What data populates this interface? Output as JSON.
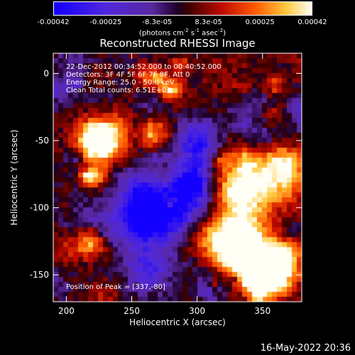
{
  "colorbar": {
    "ticks": [
      "-0.00042",
      "-0.00025",
      "-8.3e-05",
      "8.3e-05",
      "0.00025",
      "0.00042"
    ],
    "tick_values": [
      -0.00042,
      -0.00025,
      -8.3e-05,
      8.3e-05,
      0.00025,
      0.00042
    ],
    "units_prefix": "(photons cm",
    "units_exp1": "-2",
    "units_mid": " s",
    "units_exp2": "-1",
    "units_suffix": " asec",
    "units_exp3": "-2",
    "units_close": ")"
  },
  "chart_data": {
    "type": "heatmap",
    "title": "Reconstructed RHESSI Image",
    "xlabel": "Heliocentric X (arcsec)",
    "ylabel": "Heliocentric Y (arcsec)",
    "xlim": [
      190,
      380
    ],
    "ylim": [
      -170,
      15
    ],
    "xticks": [
      200,
      250,
      300,
      350
    ],
    "yticks": [
      0,
      -50,
      -100,
      -150
    ],
    "zlim": [
      -0.00042,
      0.00042
    ],
    "annotations": [
      "22-Dec-2012 00:34:52.000 to 00:40:52.000",
      "Detectors: 3F 4F 5F 6F 7F 8F, Att 0",
      "Energy Range: 25.0 - 50.0 keV",
      "Clean    Total counts: 6.51E+03"
    ],
    "peak_label": "Position of Peak = [337,-80]",
    "peak": [
      337,
      -80
    ]
  },
  "footer": {
    "timestamp": "16-May-2022 20:36"
  },
  "colors": {
    "background": "#000000",
    "axes": "#ffffff"
  }
}
